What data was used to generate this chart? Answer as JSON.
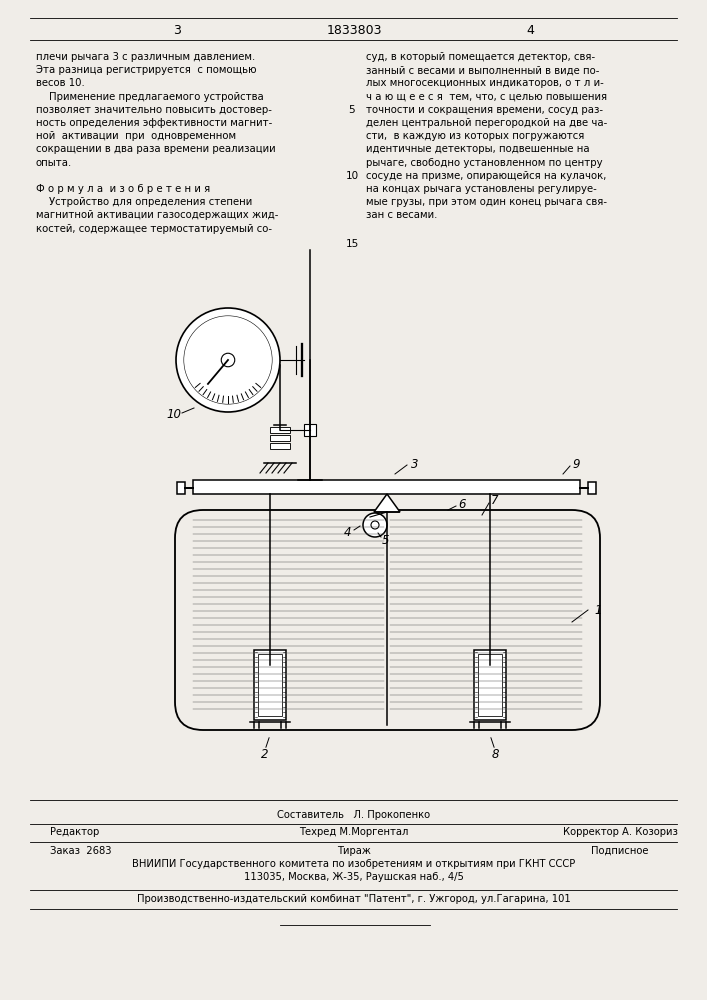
{
  "page_width": 7.07,
  "page_height": 10.0,
  "bg_color": "#f0ede8",
  "header_page_left": "3",
  "header_patent": "1833803",
  "header_page_right": "4",
  "left_col_text": [
    "плечи рычага 3 с различным давлением.",
    "Эта разница регистрируется  с помощью",
    "весов 10.",
    "    Применение предлагаемого устройства",
    "позволяет значительно повысить достовер-",
    "ность определения эффективности магнит-",
    "ной  активации  при  одновременном",
    "сокращении в два раза времени реализации",
    "опыта.",
    "",
    "Ф о р м у л а  и з о б р е т е н и я",
    "    Устройство для определения степени",
    "магнитной активации газосодержащих жид-",
    "костей, содержащее термостатируемый со-"
  ],
  "right_col_text": [
    "суд, в который помещается детектор, свя-",
    "занный с весами и выполненный в виде по-",
    "лых многосекционных индикаторов, о т л и-",
    "ч а ю щ е е с я  тем, что, с целью повышения",
    "точности и сокращения времени, сосуд раз-",
    "делен центральной перегородкой на две ча-",
    "сти,  в каждую из которых погружаются",
    "идентичные детекторы, подвешенные на",
    "рычаге, свободно установленном по центру",
    "сосуде на призме, опирающейся на кулачок,",
    "на концах рычага установлены регулируе-",
    "мые грузы, при этом один конец рычага свя-",
    "зан с весами."
  ],
  "footer_vnipi": "ВНИИПИ Государственного комитета по изобретениям и открытиям при ГКНТ СССР",
  "footer_address": "113035, Москва, Ж-35, Раушская наб., 4/5",
  "footer_factory": "Производственно-издательский комбинат \"Патент\", г. Ужгород, ул.Гагарина, 101"
}
